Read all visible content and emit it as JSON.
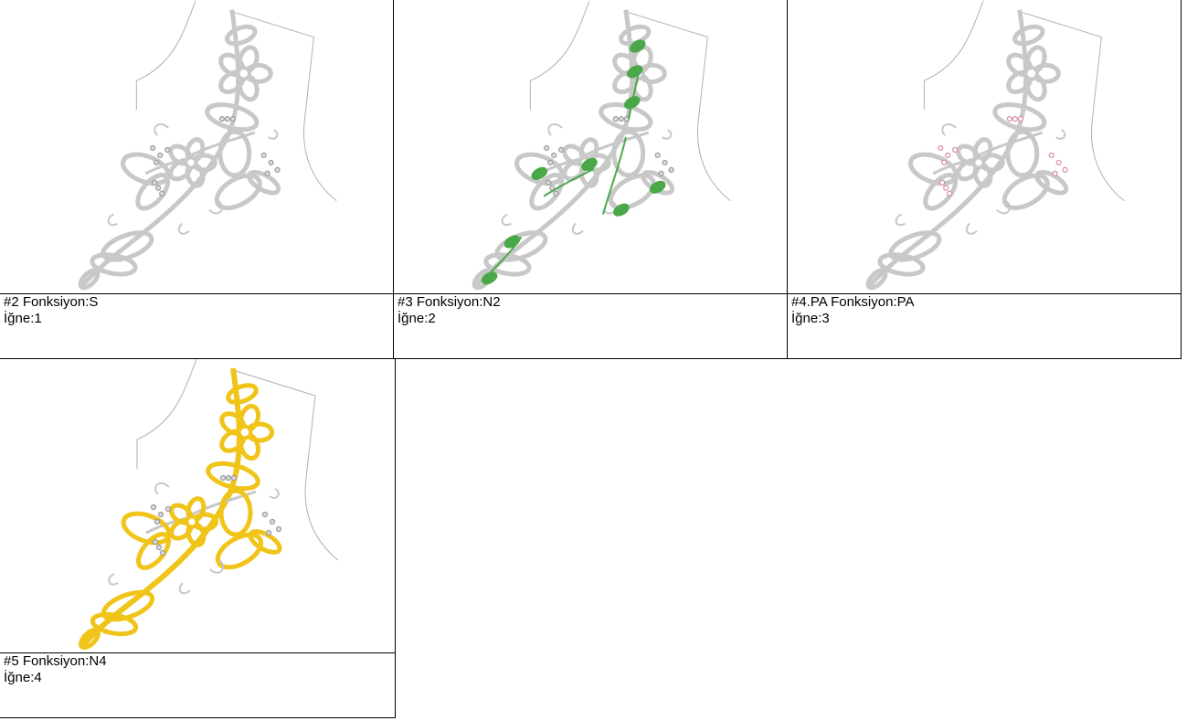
{
  "panels": [
    {
      "title": "#2 Fonksiyon:S",
      "needle": "İğne:1",
      "variant": "plain",
      "highlight_color": "#bfbfbf"
    },
    {
      "title": "#3 Fonksiyon:N2",
      "needle": "İğne:2",
      "variant": "green",
      "highlight_color": "#4aa84a"
    },
    {
      "title": "#4.PA Fonksiyon:PA",
      "needle": "İğne:3",
      "variant": "beads",
      "highlight_color": "#d98aa8"
    },
    {
      "title": "#5 Fonksiyon:N4",
      "needle": "İğne:4",
      "variant": "yellow",
      "highlight_color": "#f0c419"
    }
  ],
  "colors": {
    "base_embroidery": "#c8c8c8",
    "garment_outline": "#b0b0b0",
    "bead": "#9a9a9a"
  }
}
